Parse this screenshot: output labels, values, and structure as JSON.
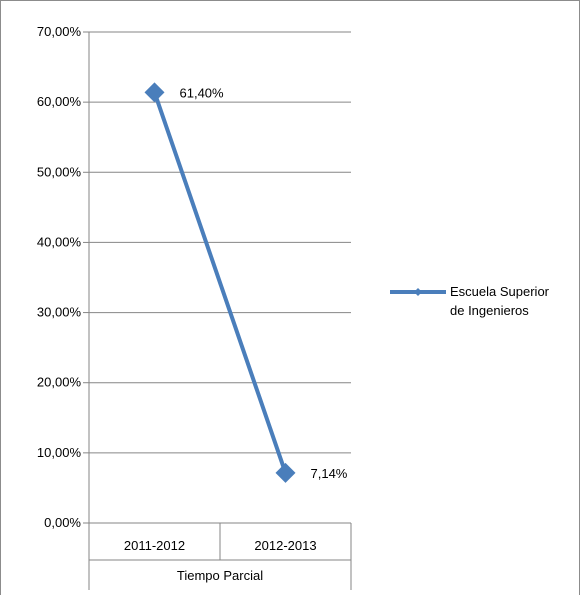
{
  "chart_data": {
    "type": "line",
    "categories": [
      "2011-2012",
      "2012-2013"
    ],
    "group_label": "Tiempo Parcial",
    "series": [
      {
        "name_lines": [
          "Escuela Superior",
          "de Ingenieros"
        ],
        "values": [
          61.4,
          7.14
        ],
        "data_labels": [
          "61,40%",
          "7,14%"
        ],
        "color": "#4a7ebb"
      }
    ],
    "y_ticks": [
      "0,00%",
      "10,00%",
      "20,00%",
      "30,00%",
      "40,00%",
      "50,00%",
      "60,00%",
      "70,00%"
    ],
    "ylim": [
      0,
      70
    ],
    "grid": true,
    "legend_position": "right",
    "marker": "diamond"
  }
}
